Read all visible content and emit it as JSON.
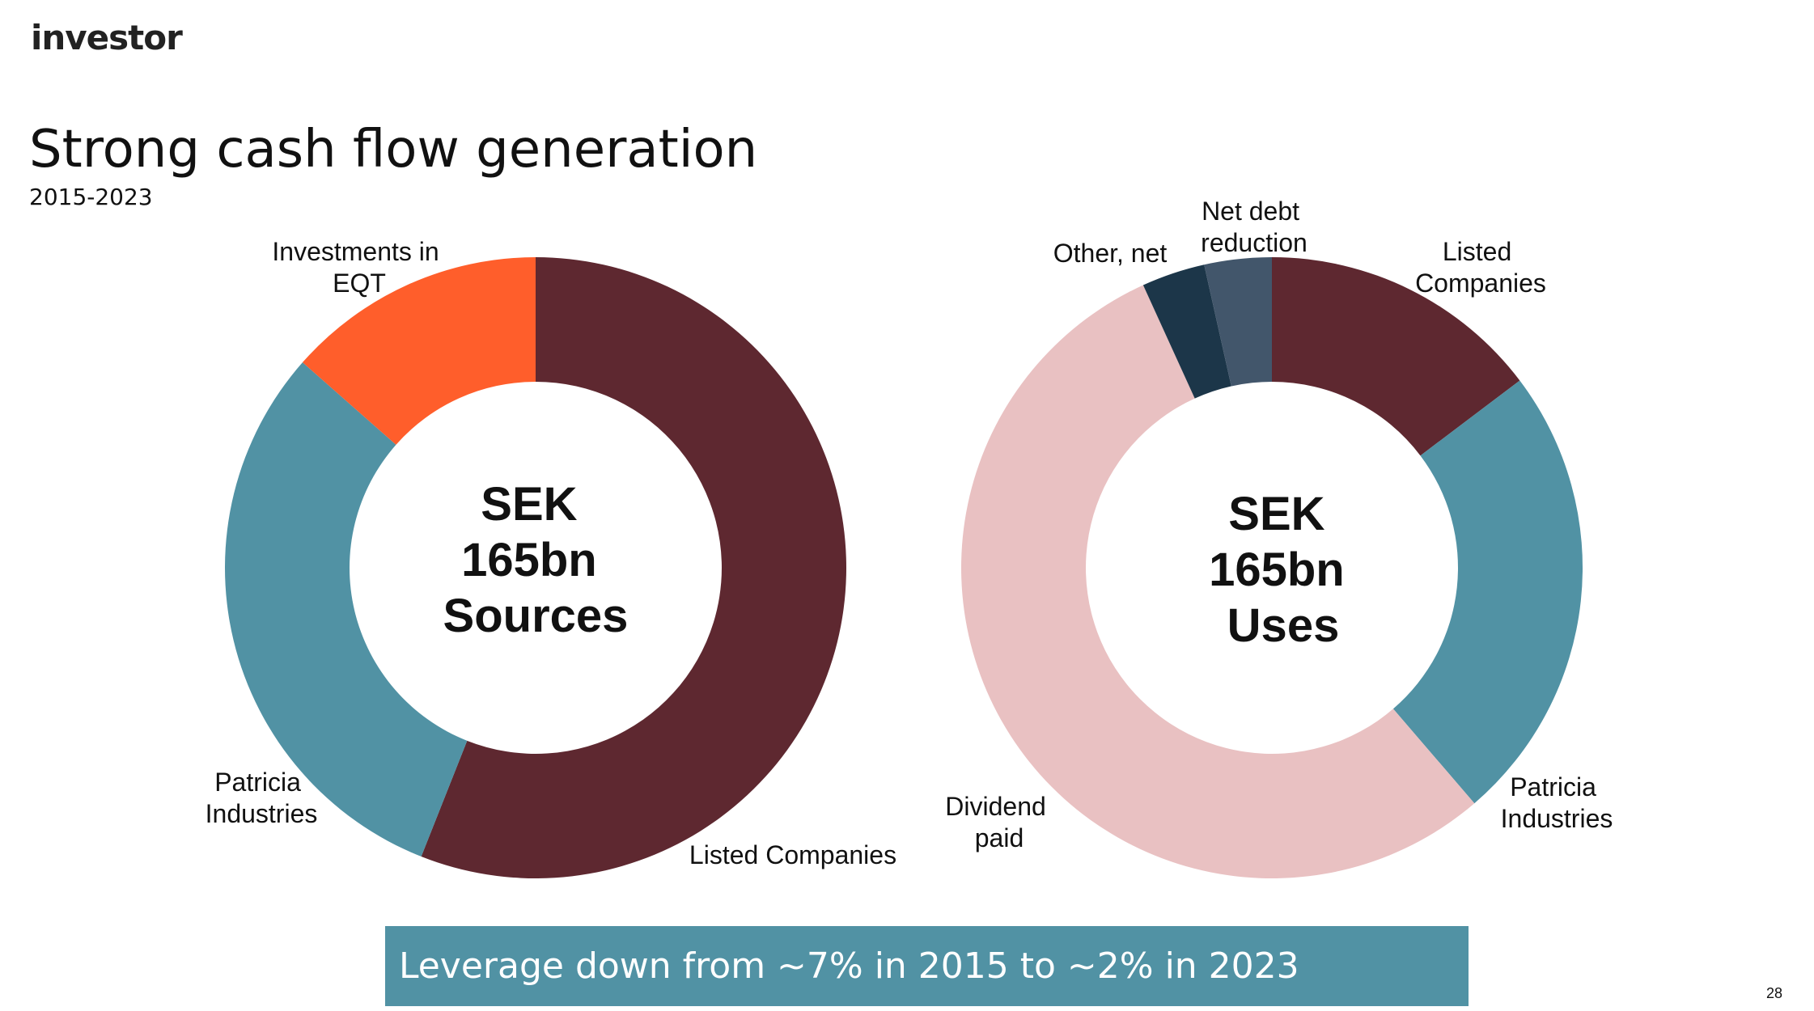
{
  "header": {
    "logo_text": "investor"
  },
  "slide": {
    "title": "Strong cash flow generation",
    "subtitle": "2015-2023"
  },
  "chart_data": [
    {
      "type": "pie",
      "variant": "donut",
      "center_text": [
        "SEK",
        "165bn",
        "Sources"
      ],
      "start_angle_deg": 0,
      "direction": "clockwise",
      "slices": [
        {
          "label": "Listed Companies",
          "value": 56.0,
          "color": "#5e2830"
        },
        {
          "label": "Patricia Industries",
          "value": 30.5,
          "color": "#5192a4"
        },
        {
          "label": "Investments in EQT",
          "value": 13.5,
          "color": "#ff5e2b"
        }
      ]
    },
    {
      "type": "pie",
      "variant": "donut",
      "center_text": [
        "SEK",
        "165bn",
        "Uses"
      ],
      "start_angle_deg": 0,
      "direction": "clockwise",
      "slices": [
        {
          "label": "Listed Companies",
          "value": 14.7,
          "color": "#5e2830"
        },
        {
          "label": "Patricia Industries",
          "value": 24.0,
          "color": "#5192a4"
        },
        {
          "label": "Dividend paid",
          "value": 54.5,
          "color": "#e9c1c2"
        },
        {
          "label": "Other, net",
          "value": 3.3,
          "color": "#1c3649"
        },
        {
          "label": "Net debt reduction",
          "value": 3.5,
          "color": "#42566b"
        }
      ]
    }
  ],
  "banner": {
    "text": "Leverage down from ~7% in 2015 to ~2% in 2023",
    "color": "#5192a4"
  },
  "footer": {
    "page_number": "28"
  }
}
